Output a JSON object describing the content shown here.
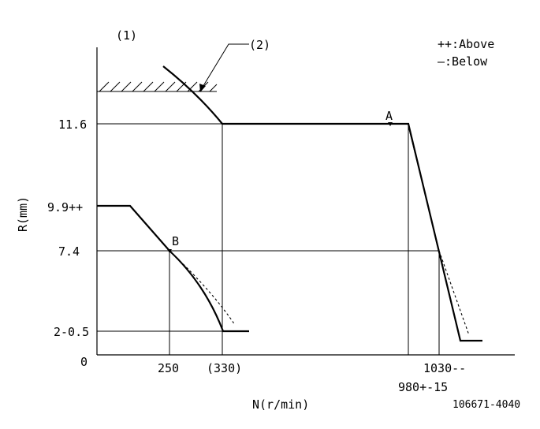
{
  "figure": {
    "marker_1": "(1)",
    "marker_2": "(2)",
    "legend_above": "++:Above",
    "legend_below": "—:Below",
    "y_axis_label": "R(mm)",
    "x_axis_label": "N(r/min)",
    "figure_id": "106671-4040",
    "origin": "0",
    "point_a": "A",
    "point_b": "B"
  },
  "y_ticks": {
    "t1": "11.6",
    "t2": "9.9++",
    "t3": "7.4",
    "t4": "2-0.5"
  },
  "x_ticks": {
    "t1": "250",
    "t2": "(330)",
    "t3": "980+-15",
    "t4": "1030--"
  }
}
